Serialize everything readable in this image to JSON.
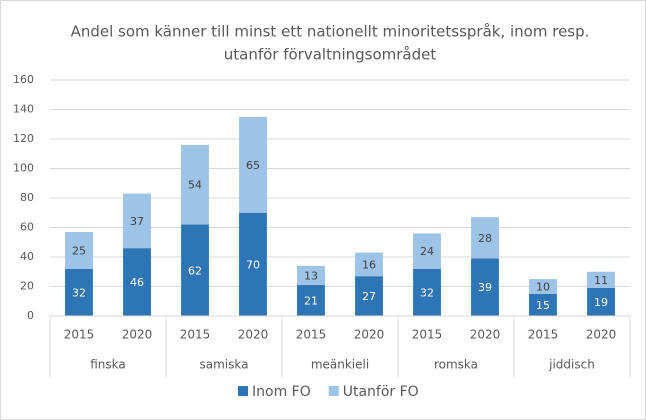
{
  "chart_data": {
    "type": "stacked-bar",
    "title": [
      "Andel som känner till minst ett nationellt minoritetsspråk, inom resp.",
      "utanför förvaltningsområdet"
    ],
    "categories": [
      "2015",
      "2020",
      "2015",
      "2020",
      "2015",
      "2020",
      "2015",
      "2020",
      "2015",
      "2020"
    ],
    "category_groups": [
      "finska",
      "samiska",
      "meänkieli",
      "romska",
      "jiddisch"
    ],
    "series": [
      {
        "name": "Inom FO",
        "color": "#2e75b6",
        "values": [
          32,
          46,
          62,
          70,
          21,
          27,
          32,
          39,
          15,
          19
        ]
      },
      {
        "name": "Utanför FO",
        "color": "#9dc3e6",
        "values": [
          25,
          37,
          54,
          65,
          13,
          16,
          24,
          28,
          10,
          11
        ]
      }
    ],
    "ylim": [
      0,
      160
    ],
    "yticks": [
      0,
      20,
      40,
      60,
      80,
      100,
      120,
      140,
      160
    ],
    "grid": true,
    "legend": "bottom"
  }
}
